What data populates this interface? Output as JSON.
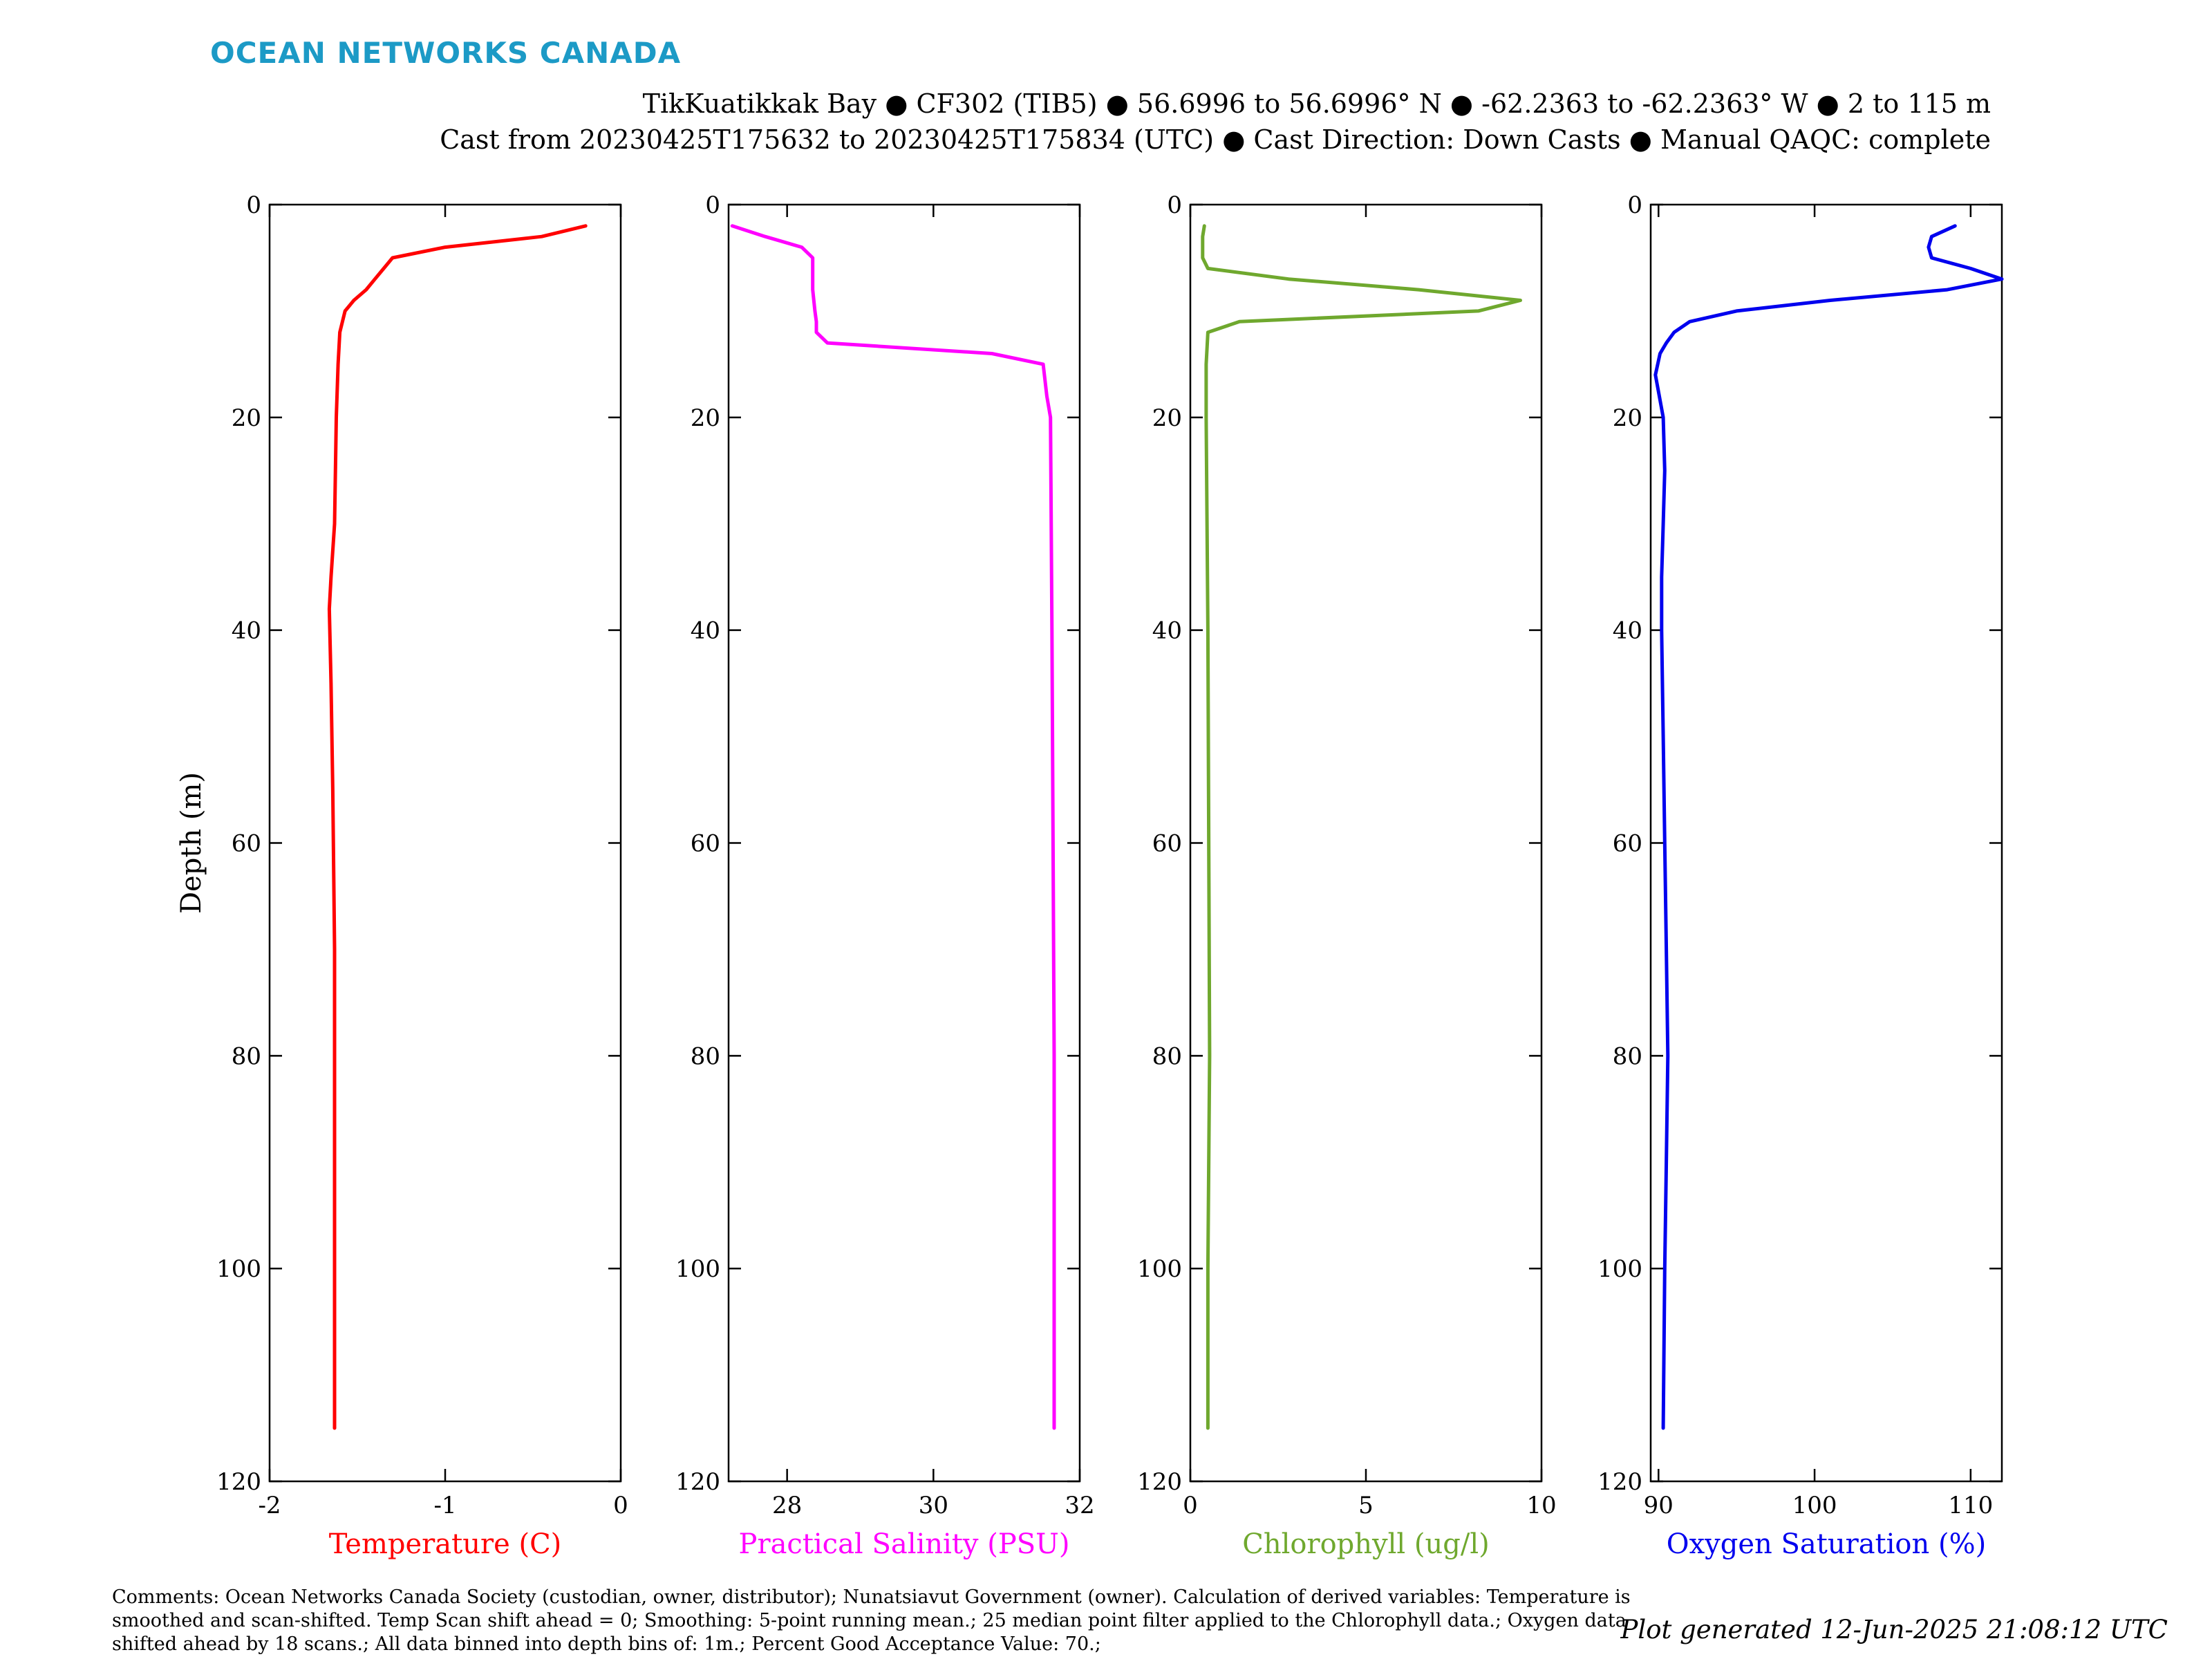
{
  "header": {
    "brand": "OCEAN NETWORKS CANADA",
    "title_line1": "TikKuatikkak Bay ● CF302 (TIB5) ● 56.6996 to 56.6996° N ● -62.2363 to -62.2363° W ● 2 to 115 m",
    "title_line2": "Cast from 20230425T175632 to 20230425T175834 (UTC) ● Cast Direction: Down Casts ● Manual QAQC: complete"
  },
  "footer": {
    "comments": "Comments: Ocean Networks Canada Society (custodian, owner, distributor); Nunatsiavut Government (owner). Calculation of derived variables: Temperature is smoothed and scan-shifted. Temp Scan shift ahead = 0; Smoothing: 5-point running mean.; 25 median point filter applied to the Chlorophyll data.; Oxygen data shifted ahead by 18 scans.; All data binned into depth bins of: 1m.; Percent Good Acceptance Value: 70.;",
    "generated": "Plot generated 12-Jun-2025 21:08:12 UTC"
  },
  "chart_data": [
    {
      "type": "line",
      "xlabel": "Temperature (C)",
      "ylabel": "Depth (m)",
      "color": "#ff0000",
      "xlim": [
        -2,
        0
      ],
      "ylim": [
        0,
        120
      ],
      "y_reversed": true,
      "xticks": [
        -2,
        -1,
        0
      ],
      "yticks": [
        0,
        20,
        40,
        60,
        80,
        100,
        120
      ],
      "series": [
        {
          "x": [
            -0.2,
            -0.45,
            -1.0,
            -1.3,
            -1.35,
            -1.4,
            -1.45,
            -1.52,
            -1.57,
            -1.6,
            -1.61,
            -1.62,
            -1.63,
            -1.65,
            -1.66,
            -1.65,
            -1.64,
            -1.63,
            -1.63,
            -1.63,
            -1.63
          ],
          "y": [
            2,
            3,
            4,
            5,
            6,
            7,
            8,
            9,
            10,
            12,
            15,
            20,
            30,
            35,
            38,
            45,
            55,
            70,
            90,
            105,
            115
          ]
        }
      ]
    },
    {
      "type": "line",
      "xlabel": "Practical Salinity (PSU)",
      "ylabel": "",
      "color": "#ff00ff",
      "xlim": [
        27.2,
        32
      ],
      "ylim": [
        0,
        120
      ],
      "y_reversed": true,
      "xticks": [
        28,
        30,
        32
      ],
      "yticks": [
        0,
        20,
        40,
        60,
        80,
        100,
        120
      ],
      "series": [
        {
          "x": [
            27.25,
            27.7,
            28.2,
            28.35,
            28.35,
            28.38,
            28.4,
            28.4,
            28.55,
            30.8,
            31.5,
            31.55,
            31.6,
            31.62,
            31.65,
            31.65
          ],
          "y": [
            2,
            3,
            4,
            5,
            8,
            10,
            11,
            12,
            13,
            14,
            15,
            18,
            20,
            40,
            80,
            115
          ]
        }
      ]
    },
    {
      "type": "line",
      "xlabel": "Chlorophyll (ug/l)",
      "ylabel": "",
      "color": "#6fa82e",
      "xlim": [
        0,
        10
      ],
      "ylim": [
        0,
        120
      ],
      "y_reversed": true,
      "xticks": [
        0,
        5,
        10
      ],
      "yticks": [
        0,
        20,
        40,
        60,
        80,
        100,
        120
      ],
      "series": [
        {
          "x": [
            0.4,
            0.35,
            0.35,
            0.5,
            2.8,
            6.5,
            9.4,
            8.2,
            1.4,
            0.5,
            0.45,
            0.45,
            0.5,
            0.55,
            0.5,
            0.5
          ],
          "y": [
            2,
            3,
            5,
            6,
            7,
            8,
            9,
            10,
            11,
            12,
            15,
            20,
            40,
            80,
            100,
            115
          ]
        }
      ]
    },
    {
      "type": "line",
      "xlabel": "Oxygen Saturation (%)",
      "ylabel": "",
      "color": "#0000ee",
      "xlim": [
        89.5,
        112
      ],
      "ylim": [
        0,
        120
      ],
      "y_reversed": true,
      "xticks": [
        90,
        100,
        110
      ],
      "yticks": [
        0,
        20,
        40,
        60,
        80,
        100,
        120
      ],
      "series": [
        {
          "x": [
            109,
            107.5,
            107.3,
            107.5,
            110,
            112,
            108.5,
            101,
            95,
            92,
            91,
            90.5,
            90.1,
            89.8,
            90.3,
            90.4,
            90.3,
            90.2,
            90.2,
            90.3,
            90.4,
            90.5,
            90.6,
            90.5,
            90.4,
            90.3
          ],
          "y": [
            2,
            3,
            4,
            5,
            6,
            7,
            8,
            9,
            10,
            11,
            12,
            13,
            14,
            16,
            20,
            25,
            30,
            35,
            40,
            50,
            60,
            70,
            80,
            90,
            100,
            115
          ]
        }
      ]
    }
  ]
}
